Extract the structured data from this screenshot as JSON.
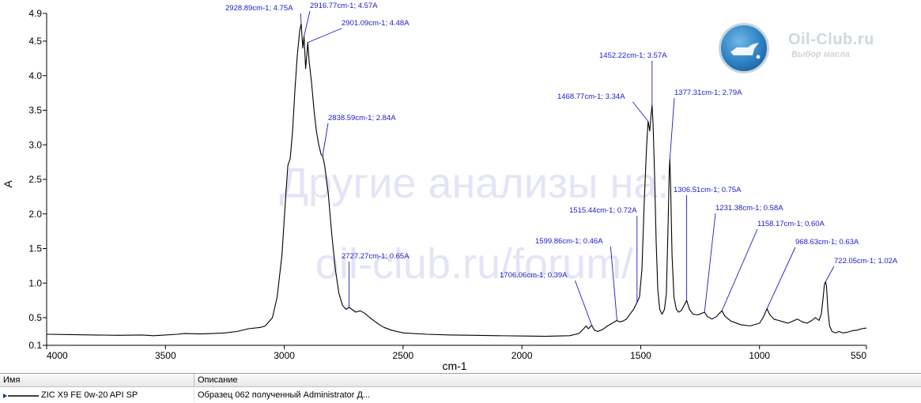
{
  "chart_data": {
    "type": "line",
    "xlabel": "cm-1",
    "ylabel": "A",
    "xlim": [
      4000,
      550
    ],
    "ylim": [
      0.1,
      4.9
    ],
    "x_reversed": true,
    "grid": false,
    "x_ticks": [
      {
        "v": 4000,
        "label": "4000"
      },
      {
        "v": 3500,
        "label": "3500"
      },
      {
        "v": 3000,
        "label": "3000"
      },
      {
        "v": 2500,
        "label": "2500"
      },
      {
        "v": 2000,
        "label": "2000"
      },
      {
        "v": 1500,
        "label": "1500"
      },
      {
        "v": 1000,
        "label": "1000"
      },
      {
        "v": 550,
        "label": "550"
      }
    ],
    "y_ticks": [
      {
        "v": 0.1,
        "label": "0.1"
      },
      {
        "v": 0.5,
        "label": "0.5"
      },
      {
        "v": 1.0,
        "label": "1.0"
      },
      {
        "v": 1.5,
        "label": "1.5"
      },
      {
        "v": 2.0,
        "label": "2.0"
      },
      {
        "v": 2.5,
        "label": "2.5"
      },
      {
        "v": 3.0,
        "label": "3.0"
      },
      {
        "v": 3.5,
        "label": "3.5"
      },
      {
        "v": 4.0,
        "label": "4.0"
      },
      {
        "v": 4.5,
        "label": "4.5"
      },
      {
        "v": 4.9,
        "label": "4.9"
      }
    ],
    "series": [
      {
        "color": "#000000",
        "points": [
          [
            4000,
            0.26
          ],
          [
            3900,
            0.255
          ],
          [
            3800,
            0.25
          ],
          [
            3700,
            0.245
          ],
          [
            3600,
            0.25
          ],
          [
            3550,
            0.24
          ],
          [
            3500,
            0.25
          ],
          [
            3450,
            0.26
          ],
          [
            3420,
            0.27
          ],
          [
            3350,
            0.265
          ],
          [
            3300,
            0.27
          ],
          [
            3250,
            0.28
          ],
          [
            3200,
            0.3
          ],
          [
            3150,
            0.34
          ],
          [
            3100,
            0.36
          ],
          [
            3080,
            0.38
          ],
          [
            3050,
            0.5
          ],
          [
            3030,
            0.8
          ],
          [
            3010,
            1.4
          ],
          [
            2995,
            2.2
          ],
          [
            2985,
            2.7
          ],
          [
            2975,
            2.8
          ],
          [
            2965,
            3.2
          ],
          [
            2955,
            3.8
          ],
          [
            2945,
            4.3
          ],
          [
            2935,
            4.65
          ],
          [
            2928.89,
            4.75
          ],
          [
            2922,
            4.4
          ],
          [
            2916.77,
            4.57
          ],
          [
            2910,
            4.1
          ],
          [
            2905,
            4.3
          ],
          [
            2901.09,
            4.48
          ],
          [
            2895,
            4.2
          ],
          [
            2885,
            3.9
          ],
          [
            2875,
            3.5
          ],
          [
            2865,
            3.2
          ],
          [
            2855,
            3.0
          ],
          [
            2845,
            2.86
          ],
          [
            2838.59,
            2.84
          ],
          [
            2830,
            2.7
          ],
          [
            2815,
            2.3
          ],
          [
            2800,
            1.7
          ],
          [
            2785,
            1.2
          ],
          [
            2770,
            0.85
          ],
          [
            2755,
            0.68
          ],
          [
            2740,
            0.62
          ],
          [
            2727.27,
            0.65
          ],
          [
            2715,
            0.62
          ],
          [
            2700,
            0.58
          ],
          [
            2680,
            0.6
          ],
          [
            2660,
            0.56
          ],
          [
            2640,
            0.5
          ],
          [
            2620,
            0.45
          ],
          [
            2600,
            0.4
          ],
          [
            2580,
            0.36
          ],
          [
            2550,
            0.32
          ],
          [
            2500,
            0.28
          ],
          [
            2400,
            0.26
          ],
          [
            2300,
            0.25
          ],
          [
            2200,
            0.245
          ],
          [
            2100,
            0.24
          ],
          [
            2000,
            0.235
          ],
          [
            1900,
            0.23
          ],
          [
            1800,
            0.24
          ],
          [
            1760,
            0.27
          ],
          [
            1740,
            0.34
          ],
          [
            1730,
            0.38
          ],
          [
            1720,
            0.34
          ],
          [
            1706.06,
            0.39
          ],
          [
            1695,
            0.32
          ],
          [
            1680,
            0.3
          ],
          [
            1660,
            0.33
          ],
          [
            1640,
            0.38
          ],
          [
            1620,
            0.42
          ],
          [
            1599.86,
            0.46
          ],
          [
            1590,
            0.44
          ],
          [
            1575,
            0.45
          ],
          [
            1560,
            0.48
          ],
          [
            1545,
            0.55
          ],
          [
            1530,
            0.62
          ],
          [
            1515.44,
            0.72
          ],
          [
            1505,
            0.8
          ],
          [
            1495,
            1.2
          ],
          [
            1485,
            2.2
          ],
          [
            1475,
            3.0
          ],
          [
            1468.77,
            3.34
          ],
          [
            1462,
            3.2
          ],
          [
            1456,
            3.45
          ],
          [
            1452.22,
            3.57
          ],
          [
            1448,
            3.3
          ],
          [
            1442,
            2.6
          ],
          [
            1435,
            1.6
          ],
          [
            1428,
            0.9
          ],
          [
            1420,
            0.62
          ],
          [
            1410,
            0.55
          ],
          [
            1400,
            0.62
          ],
          [
            1392,
            0.85
          ],
          [
            1385,
            1.8
          ],
          [
            1380,
            2.6
          ],
          [
            1377.31,
            2.79
          ],
          [
            1374,
            2.4
          ],
          [
            1368,
            1.4
          ],
          [
            1360,
            0.8
          ],
          [
            1350,
            0.62
          ],
          [
            1340,
            0.58
          ],
          [
            1330,
            0.6
          ],
          [
            1320,
            0.66
          ],
          [
            1306.51,
            0.75
          ],
          [
            1295,
            0.62
          ],
          [
            1280,
            0.55
          ],
          [
            1260,
            0.54
          ],
          [
            1245,
            0.56
          ],
          [
            1231.38,
            0.58
          ],
          [
            1220,
            0.52
          ],
          [
            1200,
            0.48
          ],
          [
            1180,
            0.52
          ],
          [
            1170,
            0.56
          ],
          [
            1158.17,
            0.6
          ],
          [
            1145,
            0.52
          ],
          [
            1120,
            0.45
          ],
          [
            1080,
            0.4
          ],
          [
            1040,
            0.38
          ],
          [
            1000,
            0.42
          ],
          [
            985,
            0.5
          ],
          [
            975,
            0.58
          ],
          [
            968.63,
            0.63
          ],
          [
            958,
            0.55
          ],
          [
            940,
            0.48
          ],
          [
            920,
            0.46
          ],
          [
            900,
            0.44
          ],
          [
            880,
            0.42
          ],
          [
            860,
            0.45
          ],
          [
            840,
            0.48
          ],
          [
            820,
            0.44
          ],
          [
            800,
            0.42
          ],
          [
            780,
            0.46
          ],
          [
            765,
            0.5
          ],
          [
            750,
            0.46
          ],
          [
            740,
            0.55
          ],
          [
            732,
            0.8
          ],
          [
            727,
            0.98
          ],
          [
            722.05,
            1.02
          ],
          [
            718,
            0.95
          ],
          [
            712,
            0.6
          ],
          [
            705,
            0.38
          ],
          [
            695,
            0.3
          ],
          [
            680,
            0.28
          ],
          [
            665,
            0.3
          ],
          [
            650,
            0.28
          ],
          [
            630,
            0.29
          ],
          [
            610,
            0.31
          ],
          [
            590,
            0.32
          ],
          [
            570,
            0.34
          ],
          [
            550,
            0.35
          ]
        ]
      }
    ],
    "annotations": [
      {
        "x": 2928.89,
        "y": 4.75,
        "text": "2928.89cm-1; 4.75A"
      },
      {
        "x": 2916.77,
        "y": 4.57,
        "text": "2916.77cm-1; 4.57A"
      },
      {
        "x": 2901.09,
        "y": 4.48,
        "text": "2901.09cm-1; 4.48A"
      },
      {
        "x": 2838.59,
        "y": 2.84,
        "text": "2838.59cm-1; 2.84A"
      },
      {
        "x": 2727.27,
        "y": 0.65,
        "text": "2727.27cm-1; 0.65A"
      },
      {
        "x": 1706.06,
        "y": 0.39,
        "text": "1706.06cm-1; 0.39A"
      },
      {
        "x": 1599.86,
        "y": 0.46,
        "text": "1599.86cm-1; 0.46A"
      },
      {
        "x": 1515.44,
        "y": 0.72,
        "text": "1515.44cm-1; 0.72A"
      },
      {
        "x": 1468.77,
        "y": 3.34,
        "text": "1468.77cm-1; 3.34A"
      },
      {
        "x": 1452.22,
        "y": 3.57,
        "text": "1452.22cm-1; 3.57A"
      },
      {
        "x": 1377.31,
        "y": 2.79,
        "text": "1377.31cm-1; 2.79A"
      },
      {
        "x": 1306.51,
        "y": 0.75,
        "text": "1306.51cm-1; 0.75A"
      },
      {
        "x": 1231.38,
        "y": 0.58,
        "text": "1231.38cm-1; 0.58A"
      },
      {
        "x": 1158.17,
        "y": 0.6,
        "text": "1158.17cm-1; 0.60A"
      },
      {
        "x": 968.63,
        "y": 0.63,
        "text": "968.63cm-1; 0.63A"
      },
      {
        "x": 722.05,
        "y": 1.02,
        "text": "722.05cm-1; 1.02A"
      }
    ]
  },
  "watermark": {
    "line1": "Другие анализы на:",
    "line2": "oil-club.ru/forum/"
  },
  "logo": {
    "title": "Oil-Club.ru",
    "subtitle": "Выбор масла"
  },
  "legend": {
    "columns": {
      "name": "Имя",
      "description": "Описание"
    },
    "rows": [
      {
        "name": "ZIC X9 FE 0w-20 API SP",
        "description": "Образец 062 полученный Administrator Д...",
        "color": "#000000"
      }
    ]
  }
}
